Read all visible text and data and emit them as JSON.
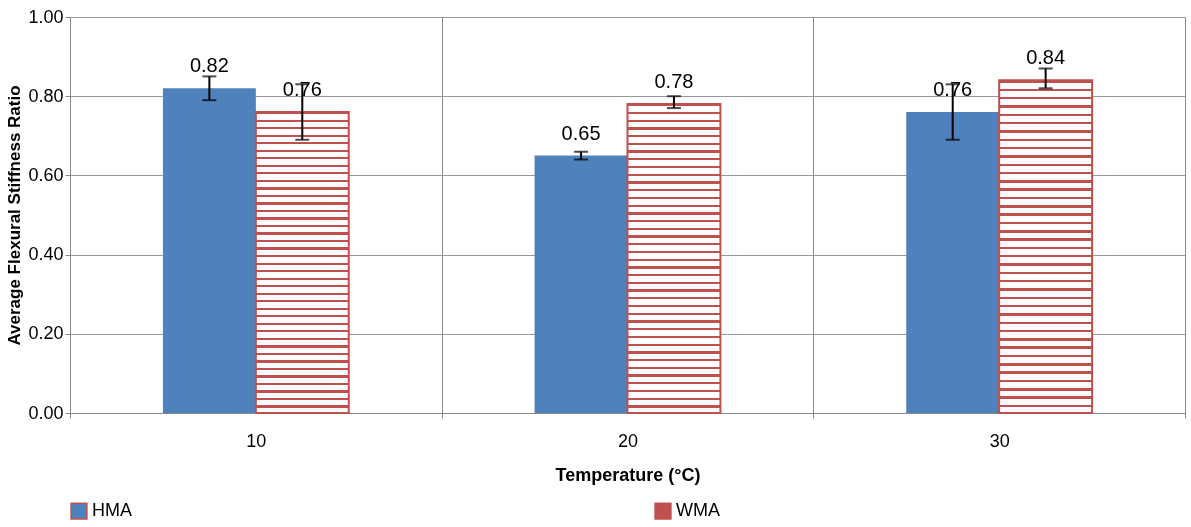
{
  "chart_data": {
    "type": "bar",
    "xlabel": "Temperature (°C)",
    "ylabel": "Average Flexural Stiffness Ratio",
    "categories": [
      "10",
      "20",
      "30"
    ],
    "series": [
      {
        "name": "HMA",
        "color": "#4f81bd",
        "values": [
          0.82,
          0.65,
          0.76
        ],
        "errors": [
          [
            0.79,
            0.85
          ],
          [
            0.64,
            0.66
          ],
          [
            0.69,
            0.83
          ]
        ]
      },
      {
        "name": "WMA",
        "color": "#c0504d",
        "values": [
          0.76,
          0.78,
          0.84
        ],
        "errors": [
          [
            0.69,
            0.83
          ],
          [
            0.77,
            0.8
          ],
          [
            0.82,
            0.87
          ]
        ]
      }
    ],
    "ylim": [
      0,
      1
    ],
    "yticks": [
      {
        "value": 0,
        "label": "0.00"
      },
      {
        "value": 0.2,
        "label": "0.20"
      },
      {
        "value": 0.4,
        "label": "0.40"
      },
      {
        "value": 0.6,
        "label": "0.60"
      },
      {
        "value": 0.8,
        "label": "0.80"
      },
      {
        "value": 1,
        "label": "1.00"
      }
    ],
    "grid": true,
    "legend": "bottom",
    "data_labels": true
  }
}
